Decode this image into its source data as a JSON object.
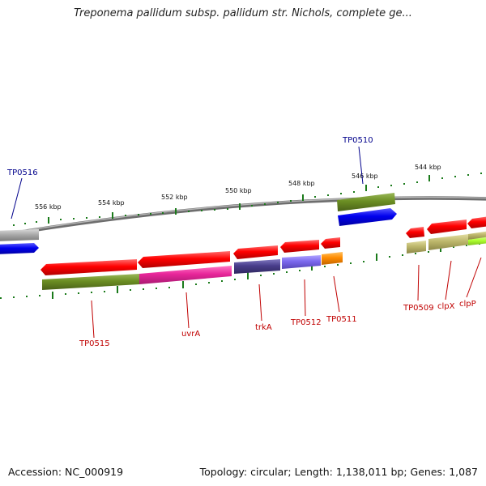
{
  "title": "Treponema pallidum subsp. pallidum str. Nichols, complete ge...",
  "accession": "Accession: NC_000919",
  "summary": "Topology: circular; Length: 1,138,011 bp; Genes: 1,087",
  "ticks": [
    "556 kbp",
    "554 kbp",
    "552 kbp",
    "550 kbp",
    "548 kbp",
    "546 kbp",
    "544 kbp"
  ],
  "genes": {
    "TP0516": "TP0516",
    "TP0510": "TP0510",
    "TP0515": "TP0515",
    "uvrA": "uvrA",
    "trkA": "trkA",
    "TP0512": "TP0512",
    "TP0511": "TP0511",
    "TP0509": "TP0509",
    "clpX": "clpX",
    "clpP": "clpP"
  },
  "colors": {
    "forward_label": "#00008b",
    "reverse_label": "#c00000",
    "backbone": "#808080",
    "tick": "#1a7a1a",
    "gene": "#ff0000",
    "cds_olive": "#6b8e23",
    "cds_magenta": "#e8269a",
    "cds_slate": "#483d8b",
    "cds_lavender": "#7b68ee",
    "cds_orange": "#ff8c00",
    "cds_khaki": "#bdb76b",
    "cds_lime": "#adff2f",
    "cds_blue": "#0000ee",
    "cds_gray": "#a9a9a9"
  }
}
